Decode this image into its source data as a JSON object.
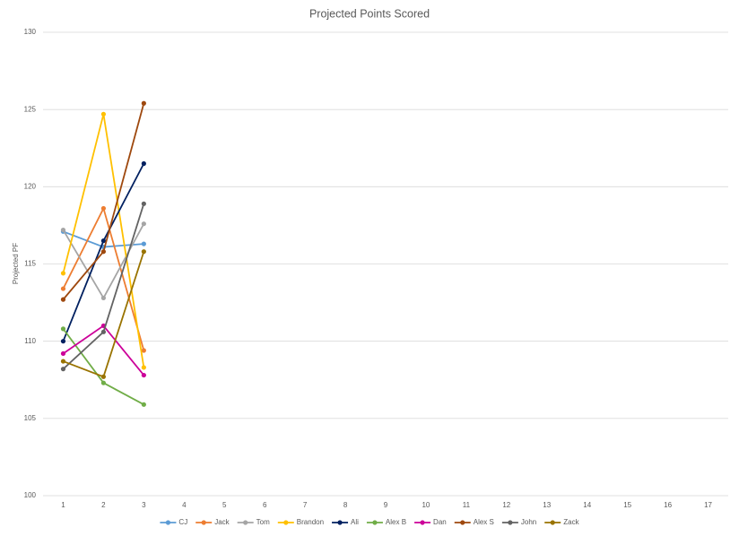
{
  "chart_data": {
    "type": "line",
    "title": "Projected Points Scored",
    "y_label": "Projected PF",
    "categories": [
      1,
      2,
      3,
      4,
      5,
      6,
      7,
      8,
      9,
      10,
      11,
      12,
      13,
      14,
      15,
      16,
      17
    ],
    "series": [
      {
        "name": "CJ",
        "color": "#5b9bd5",
        "values": [
          117.1,
          116.1,
          116.3,
          null,
          null,
          null,
          null,
          null,
          null,
          null,
          null,
          null,
          null,
          null,
          null,
          null,
          null
        ]
      },
      {
        "name": "Jack",
        "color": "#ed7d31",
        "values": [
          113.4,
          118.6,
          109.4,
          null,
          null,
          null,
          null,
          null,
          null,
          null,
          null,
          null,
          null,
          null,
          null,
          null,
          null
        ]
      },
      {
        "name": "Tom",
        "color": "#a5a5a5",
        "values": [
          117.2,
          112.8,
          117.6,
          null,
          null,
          null,
          null,
          null,
          null,
          null,
          null,
          null,
          null,
          null,
          null,
          null,
          null
        ]
      },
      {
        "name": "Brandon",
        "color": "#ffc000",
        "values": [
          114.4,
          124.7,
          108.3,
          null,
          null,
          null,
          null,
          null,
          null,
          null,
          null,
          null,
          null,
          null,
          null,
          null,
          null
        ]
      },
      {
        "name": "Ali",
        "color": "#002060",
        "values": [
          110.0,
          116.5,
          121.5,
          null,
          null,
          null,
          null,
          null,
          null,
          null,
          null,
          null,
          null,
          null,
          null,
          null,
          null
        ]
      },
      {
        "name": "Alex B",
        "color": "#70ad47",
        "values": [
          110.8,
          107.3,
          105.9,
          null,
          null,
          null,
          null,
          null,
          null,
          null,
          null,
          null,
          null,
          null,
          null,
          null,
          null
        ]
      },
      {
        "name": "Dan",
        "color": "#cc0099",
        "values": [
          109.2,
          111.0,
          107.8,
          null,
          null,
          null,
          null,
          null,
          null,
          null,
          null,
          null,
          null,
          null,
          null,
          null,
          null
        ]
      },
      {
        "name": "Alex S",
        "color": "#9e480e",
        "values": [
          112.7,
          115.8,
          125.4,
          null,
          null,
          null,
          null,
          null,
          null,
          null,
          null,
          null,
          null,
          null,
          null,
          null,
          null
        ]
      },
      {
        "name": "John",
        "color": "#636363",
        "values": [
          108.2,
          110.6,
          118.9,
          null,
          null,
          null,
          null,
          null,
          null,
          null,
          null,
          null,
          null,
          null,
          null,
          null,
          null
        ]
      },
      {
        "name": "Zack",
        "color": "#997300",
        "values": [
          108.7,
          107.7,
          115.8,
          null,
          null,
          null,
          null,
          null,
          null,
          null,
          null,
          null,
          null,
          null,
          null,
          null,
          null
        ]
      }
    ],
    "ylim": [
      100,
      130
    ],
    "yticks": [
      100,
      105,
      110,
      115,
      120,
      125,
      130
    ],
    "grid": true,
    "legend": "bottom"
  }
}
